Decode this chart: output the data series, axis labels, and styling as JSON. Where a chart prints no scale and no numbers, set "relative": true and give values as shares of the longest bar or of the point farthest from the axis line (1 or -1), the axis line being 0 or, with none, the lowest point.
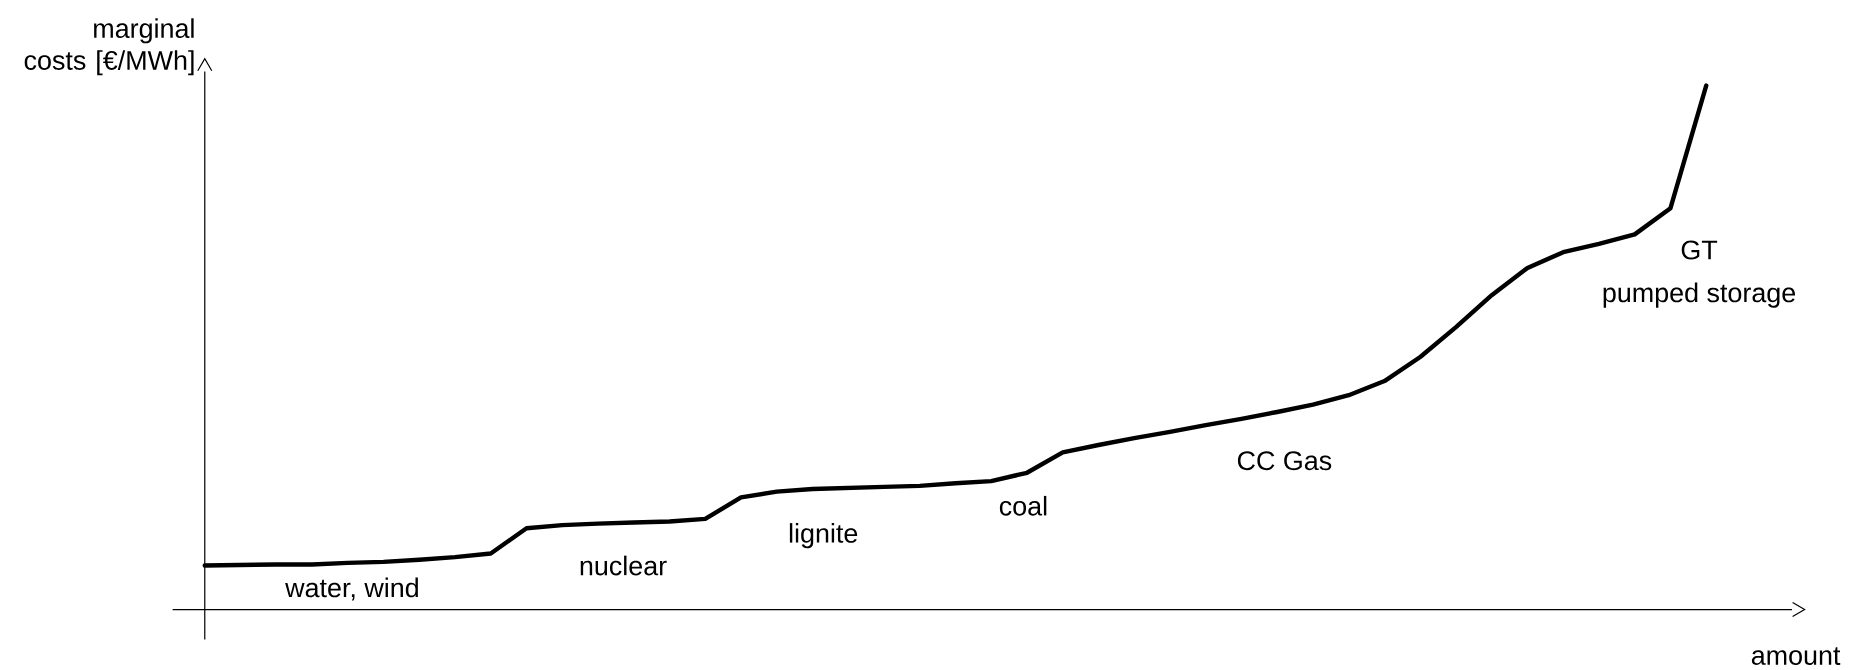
{
  "chart_data": {
    "type": "line",
    "relative": true,
    "xlabel": "amount",
    "ylabel": "marginal costs [€/MWh]",
    "categories": [
      null,
      null,
      null,
      null,
      null,
      null,
      null,
      null,
      null,
      null,
      null,
      null,
      null,
      null,
      null,
      null,
      null,
      null,
      null,
      null,
      null,
      null,
      null,
      null,
      null,
      null,
      null,
      null,
      null,
      null,
      null,
      null,
      null,
      null,
      null,
      null,
      null,
      null,
      null,
      null,
      null,
      null,
      null
    ],
    "series": [
      {
        "color": "#000000",
        "values": [
          0.084,
          0.085,
          0.086,
          0.086,
          0.089,
          0.091,
          0.095,
          0.1,
          0.107,
          0.155,
          0.161,
          0.164,
          0.166,
          0.168,
          0.173,
          0.214,
          0.225,
          0.23,
          0.232,
          0.234,
          0.236,
          0.241,
          0.245,
          0.261,
          0.3,
          0.314,
          0.327,
          0.339,
          0.352,
          0.364,
          0.377,
          0.391,
          0.409,
          0.436,
          0.482,
          0.539,
          0.6,
          0.652,
          0.682,
          0.698,
          0.716,
          0.766,
          1
        ]
      }
    ],
    "annotations": [
      "water, wind",
      "nuclear",
      "lignite",
      "coal",
      "CC Gas",
      "GT",
      "pumped storage"
    ],
    "marker": "none",
    "line_style": "solid"
  }
}
